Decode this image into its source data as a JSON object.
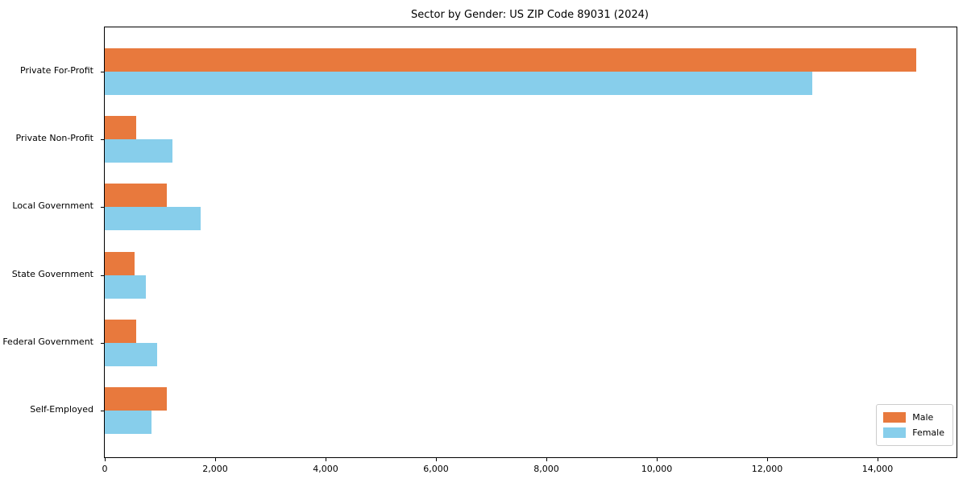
{
  "title": "Sector by Gender: US ZIP Code 89031 (2024)",
  "chart_data": {
    "type": "bar",
    "orientation": "horizontal",
    "title": "Sector by Gender: US ZIP Code 89031 (2024)",
    "xlabel": "",
    "ylabel": "",
    "categories": [
      "Private For-Profit",
      "Private Non-Profit",
      "Local Government",
      "State Government",
      "Federal Government",
      "Self-Employed"
    ],
    "series": [
      {
        "name": "Male",
        "color": "#e8793d",
        "values": [
          14700,
          570,
          1120,
          540,
          570,
          1120
        ]
      },
      {
        "name": "Female",
        "color": "#87ceeb",
        "values": [
          12820,
          1220,
          1740,
          740,
          950,
          840
        ]
      }
    ],
    "xlim": [
      0,
      15430
    ],
    "xticks": [
      0,
      2000,
      4000,
      6000,
      8000,
      10000,
      12000,
      14000
    ],
    "xtick_labels": [
      "0",
      "2,000",
      "4,000",
      "6,000",
      "8,000",
      "10,000",
      "12,000",
      "14,000"
    ],
    "legend_position": "lower right",
    "grid": false
  },
  "legend": {
    "items": [
      {
        "label": "Male",
        "color": "#e8793d"
      },
      {
        "label": "Female",
        "color": "#87ceeb"
      }
    ]
  }
}
